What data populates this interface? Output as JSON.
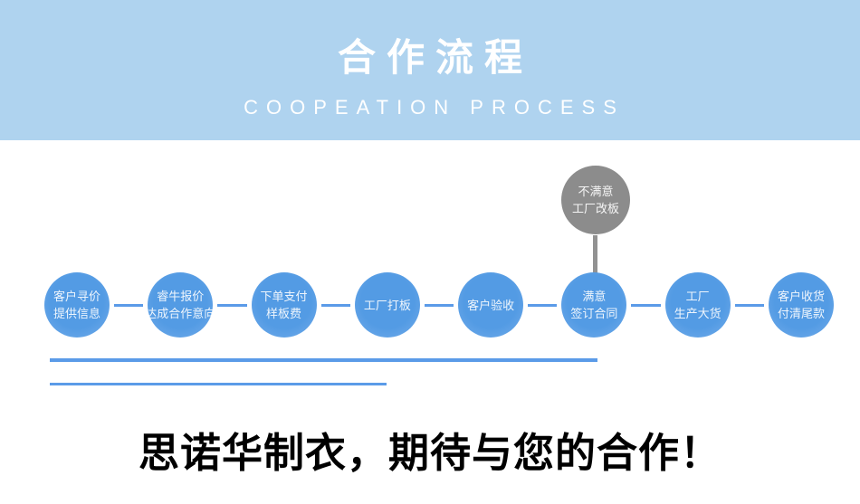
{
  "header": {
    "title": "合作流程",
    "subtitle": "COOPEATION PROCESS",
    "background_color": "#AFD3EF",
    "text_color": "#FFFFFF"
  },
  "flow": {
    "circle_color": "#539BE4",
    "connector_color": "#5B9BE8",
    "step_text_color": "#FFFFFF",
    "steps": [
      {
        "lines": [
          "客户寻价",
          "提供信息"
        ]
      },
      {
        "lines": [
          "睿牛报价",
          "达成合作意向"
        ]
      },
      {
        "lines": [
          "下单支付",
          "样板费"
        ]
      },
      {
        "lines": [
          "工厂打板"
        ]
      },
      {
        "lines": [
          "客户验收"
        ]
      },
      {
        "lines": [
          "满意",
          "签订合同"
        ]
      },
      {
        "lines": [
          "工厂",
          "生产大货"
        ]
      },
      {
        "lines": [
          "客户收货",
          "付清尾款"
        ]
      }
    ],
    "branch": {
      "circle_color": "#8C8C8C",
      "attached_to_step": "满意 签订合同",
      "lines": [
        "不满意",
        "工厂改板"
      ]
    }
  },
  "slogan": {
    "text": "思诺华制衣，期待与您的合作！"
  }
}
